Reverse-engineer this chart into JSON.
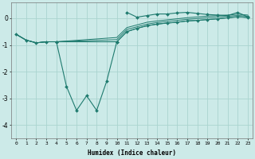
{
  "xlabel": "Humidex (Indice chaleur)",
  "background_color": "#cceae8",
  "grid_color": "#aad4d0",
  "line_color": "#1e7a6e",
  "xlim": [
    -0.5,
    23.5
  ],
  "ylim": [
    -4.5,
    0.6
  ],
  "yticks": [
    0,
    -1,
    -2,
    -3,
    -4
  ],
  "xticks": [
    0,
    1,
    2,
    3,
    4,
    5,
    6,
    7,
    8,
    9,
    10,
    11,
    12,
    13,
    14,
    15,
    16,
    17,
    18,
    19,
    20,
    21,
    22,
    23
  ],
  "series_with_markers": [
    {
      "x": [
        0,
        1,
        2,
        3,
        4,
        10,
        11,
        12,
        13,
        14,
        15,
        16,
        17,
        18,
        19,
        20,
        21,
        22,
        23
      ],
      "y": [
        -0.6,
        -0.82,
        -0.92,
        -0.88,
        -0.88,
        -0.88,
        -0.5,
        -0.38,
        -0.28,
        -0.22,
        -0.18,
        -0.15,
        -0.1,
        -0.08,
        -0.05,
        -0.02,
        0.02,
        0.06,
        0.03
      ]
    },
    {
      "x": [
        4,
        5,
        6,
        7,
        8,
        9,
        10
      ],
      "y": [
        -0.88,
        -2.55,
        -3.45,
        -2.9,
        -3.45,
        -2.35,
        -0.88
      ]
    }
  ],
  "series_plain": [
    {
      "x": [
        0,
        1,
        2,
        3,
        4,
        10,
        11,
        12,
        13,
        14,
        15,
        16,
        17,
        18,
        19,
        20,
        21,
        22,
        23
      ],
      "y": [
        -0.6,
        -0.82,
        -0.92,
        -0.88,
        -0.88,
        -0.72,
        -0.35,
        -0.25,
        -0.15,
        -0.1,
        -0.06,
        -0.02,
        0.02,
        0.05,
        0.08,
        0.1,
        0.12,
        0.15,
        0.12
      ]
    },
    {
      "x": [
        0,
        1,
        2,
        3,
        4,
        10,
        11,
        12,
        13,
        14,
        15,
        16,
        17,
        18,
        19,
        20,
        21,
        22,
        23
      ],
      "y": [
        -0.6,
        -0.82,
        -0.92,
        -0.88,
        -0.88,
        -0.8,
        -0.42,
        -0.32,
        -0.22,
        -0.16,
        -0.12,
        -0.08,
        -0.04,
        -0.01,
        0.02,
        0.05,
        0.08,
        0.1,
        0.08
      ]
    },
    {
      "x": [
        0,
        1,
        2,
        3,
        4,
        10,
        11,
        12,
        13,
        14,
        15,
        16,
        17,
        18,
        19,
        20,
        21,
        22,
        23
      ],
      "y": [
        -0.6,
        -0.82,
        -0.92,
        -0.88,
        -0.88,
        -0.88,
        -0.5,
        -0.38,
        -0.28,
        -0.22,
        -0.18,
        -0.15,
        -0.1,
        -0.08,
        -0.05,
        -0.02,
        0.02,
        0.05,
        0.03
      ]
    }
  ],
  "series_top_markers": {
    "x": [
      11,
      12,
      13,
      14,
      15,
      16,
      17,
      18,
      19,
      20,
      21,
      22,
      23
    ],
    "y": [
      0.22,
      0.04,
      0.1,
      0.16,
      0.16,
      0.2,
      0.22,
      0.18,
      0.14,
      0.12,
      0.1,
      0.22,
      0.05
    ]
  }
}
